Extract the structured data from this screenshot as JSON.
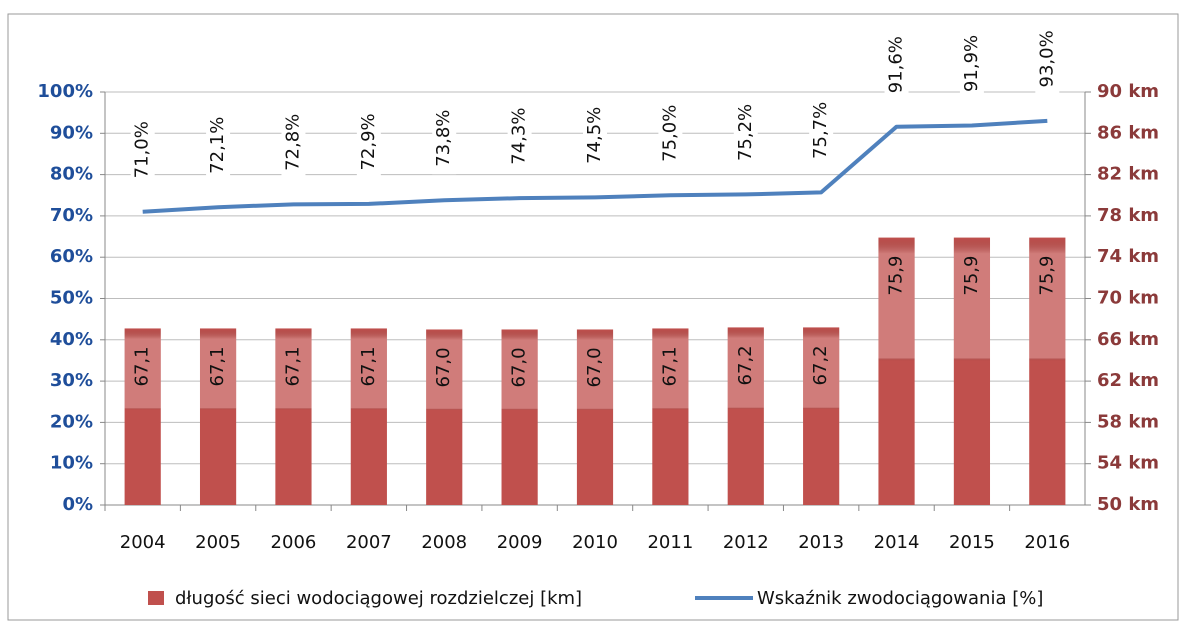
{
  "chart_data": {
    "type": "combo",
    "categories": [
      "2004",
      "2005",
      "2006",
      "2007",
      "2008",
      "2009",
      "2010",
      "2011",
      "2012",
      "2013",
      "2014",
      "2015",
      "2016"
    ],
    "series": [
      {
        "name": "długość sieci wodociągowej rozdzielczej [km]",
        "type": "bar",
        "axis": "y2",
        "color": "#c0504d",
        "values": [
          67.1,
          67.1,
          67.1,
          67.1,
          67.0,
          67.0,
          67.0,
          67.1,
          67.2,
          67.2,
          75.9,
          75.9,
          75.9
        ],
        "value_labels": [
          "67,1",
          "67,1",
          "67,1",
          "67,1",
          "67,0",
          "67,0",
          "67,0",
          "67,1",
          "67,2",
          "67,2",
          "75,9",
          "75,9",
          "75,9"
        ]
      },
      {
        "name": "Wskaźnik zwodociągowania [%]",
        "type": "line",
        "color": "#4f81bd",
        "values": [
          71.0,
          72.1,
          72.8,
          72.9,
          73.8,
          74.3,
          74.5,
          75.0,
          75.2,
          75.7,
          91.6,
          91.9,
          93.0
        ],
        "value_labels": [
          "71,0%",
          "72,1%",
          "72,8%",
          "72,9%",
          "73,8%",
          "74,3%",
          "74,5%",
          "75,0%",
          "75,2%",
          "75,7%",
          "91,6%",
          "91,9%",
          "93,0%"
        ]
      }
    ],
    "ylim": [
      0,
      100
    ],
    "yticks": [
      {
        "value": 0,
        "label": "0%"
      },
      {
        "value": 10,
        "label": "10%"
      },
      {
        "value": 20,
        "label": "20%"
      },
      {
        "value": 30,
        "label": "30%"
      },
      {
        "value": 40,
        "label": "40%"
      },
      {
        "value": 50,
        "label": "50%"
      },
      {
        "value": 60,
        "label": "60%"
      },
      {
        "value": 70,
        "label": "70%"
      },
      {
        "value": 80,
        "label": "80%"
      },
      {
        "value": 90,
        "label": "90%"
      },
      {
        "value": 100,
        "label": "100%"
      }
    ],
    "y2lim": [
      50,
      90
    ],
    "y2ticks": [
      {
        "value": 50,
        "label": "50 km"
      },
      {
        "value": 54,
        "label": "54 km"
      },
      {
        "value": 58,
        "label": "58 km"
      },
      {
        "value": 62,
        "label": "62 km"
      },
      {
        "value": 66,
        "label": "66 km"
      },
      {
        "value": 70,
        "label": "70 km"
      },
      {
        "value": 74,
        "label": "74 km"
      },
      {
        "value": 78,
        "label": "78 km"
      },
      {
        "value": 82,
        "label": "82 km"
      },
      {
        "value": 86,
        "label": "86 km"
      },
      {
        "value": 90,
        "label": "90 km"
      }
    ],
    "grid": true,
    "legend": "bottom"
  }
}
